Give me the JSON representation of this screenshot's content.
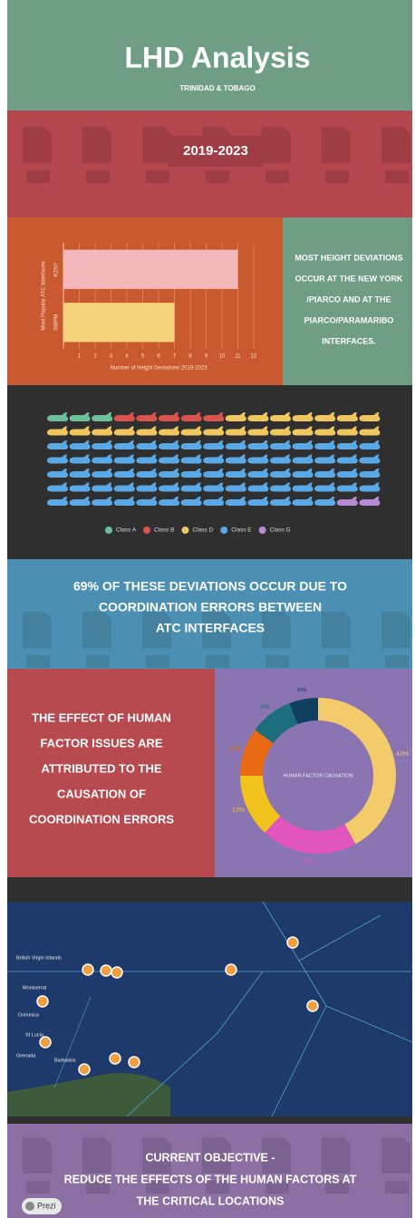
{
  "header": {
    "title": "LHD Analysis",
    "subtitle": "TRINIDAD & TOBAGO"
  },
  "period": "2019-2023",
  "interfaces_note": [
    "MOST HEIGHT DEVIATIONS",
    "OCCUR AT THE NEW YORK",
    "/PIARCO AND AT THE",
    "PIARCO/PARAMARIBO",
    "INTERFACES."
  ],
  "statement": [
    "69% OF THESE DEVIATIONS OCCUR DUE TO",
    "COORDINATION ERRORS BETWEEN",
    "ATC INTERFACES"
  ],
  "human_factor_note": [
    "THE EFFECT OF HUMAN",
    "FACTOR ISSUES ARE",
    "ATTRIBUTED TO THE",
    "CAUSATION OF",
    "COORDINATION ERRORS"
  ],
  "map_labels": [
    "British Virgin Islands",
    "Montserrat",
    "Dominica",
    "St Lucia",
    "Barbados",
    "Grenada"
  ],
  "objective": [
    "CURRENT OBJECTIVE -",
    "REDUCE THE EFFECTS OF THE HUMAN FACTORS AT",
    "THE CRITICAL LOCATIONS"
  ],
  "badge": "Prezi",
  "chart_data": [
    {
      "type": "bar",
      "orientation": "horizontal",
      "y_label": "Most Popular ATC Interfaces",
      "x_label": "Number of Height Deviations 2019-2023",
      "categories": [
        "KZNY",
        "SMPM"
      ],
      "values": [
        11,
        7
      ],
      "colors": [
        "#f4b8ba",
        "#f3d27a"
      ],
      "xlim": [
        0,
        12
      ],
      "xticks": [
        1,
        2,
        3,
        4,
        5,
        6,
        7,
        8,
        9,
        10,
        11,
        12
      ],
      "grid": true
    },
    {
      "type": "pictogram",
      "columns": 15,
      "categories": [
        "Class A",
        "Class B",
        "Class D",
        "Class E",
        "Class G"
      ],
      "values": [
        3,
        5,
        22,
        73,
        2
      ],
      "colors": [
        "#6fbf9a",
        "#d9534f",
        "#f0c75e",
        "#5aa9e6",
        "#b98ad6"
      ]
    },
    {
      "type": "pie",
      "title": "HUMAN FACTOR CAUSATION",
      "values": [
        42,
        20,
        13,
        10,
        9,
        6
      ],
      "value_labels": [
        "42%",
        "20%",
        "13%",
        "10%",
        "9%",
        "6%"
      ],
      "colors": [
        "#f3cb6b",
        "#e156bd",
        "#f1c21b",
        "#e86a12",
        "#1c6e7c",
        "#10405f"
      ]
    }
  ]
}
